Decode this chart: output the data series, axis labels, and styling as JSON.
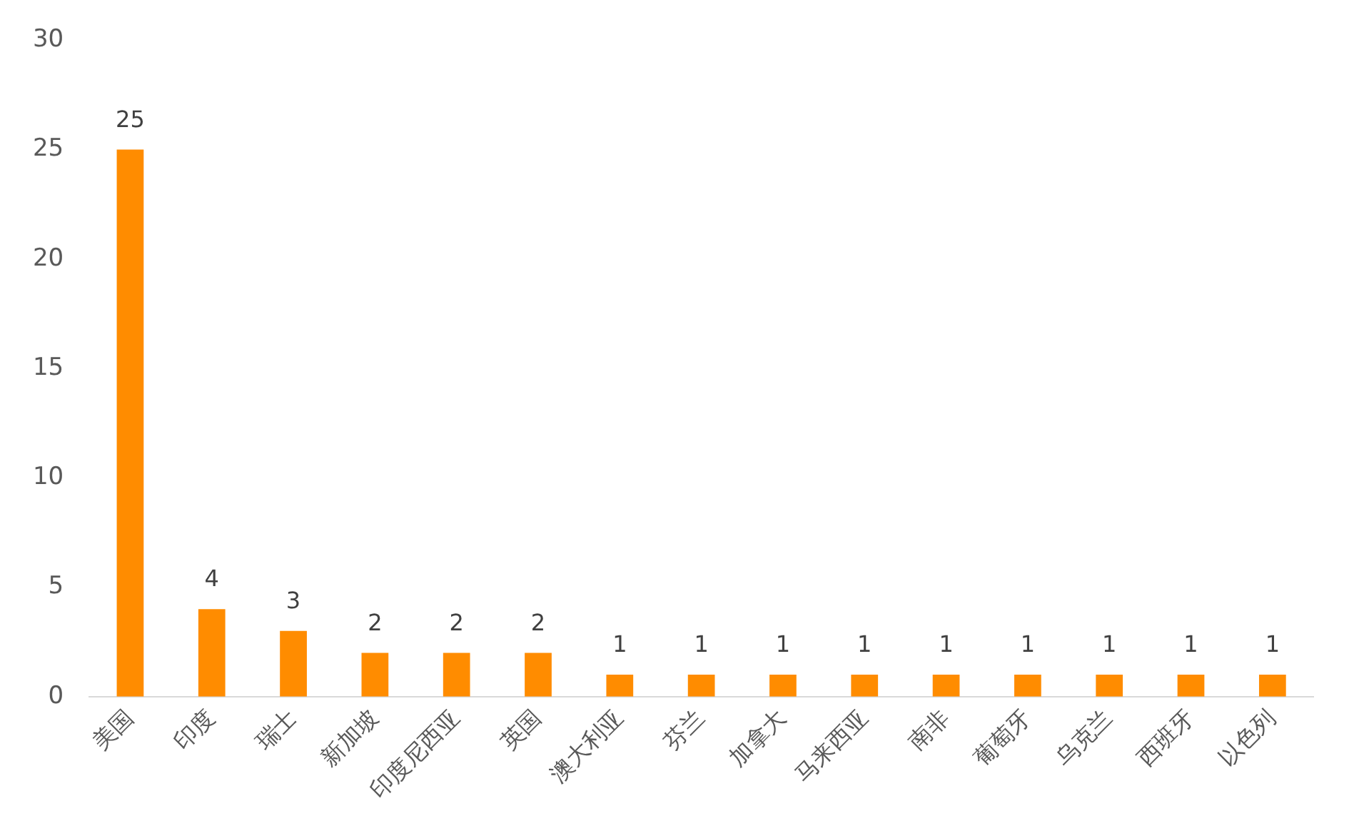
{
  "chart_data": {
    "type": "bar",
    "categories": [
      "美国",
      "印度",
      "瑞士",
      "新加坡",
      "印度尼西亚",
      "英国",
      "澳大利亚",
      "芬兰",
      "加拿大",
      "马来西亚",
      "南非",
      "葡萄牙",
      "乌克兰",
      "西班牙",
      "以色列"
    ],
    "values": [
      25,
      4,
      3,
      2,
      2,
      2,
      1,
      1,
      1,
      1,
      1,
      1,
      1,
      1,
      1
    ],
    "color": "#ff8c00",
    "ylim": [
      0,
      30
    ],
    "yticks": [
      0,
      5,
      10,
      15,
      20,
      25,
      30
    ],
    "grid": false,
    "legend": false,
    "data_labels": true
  }
}
